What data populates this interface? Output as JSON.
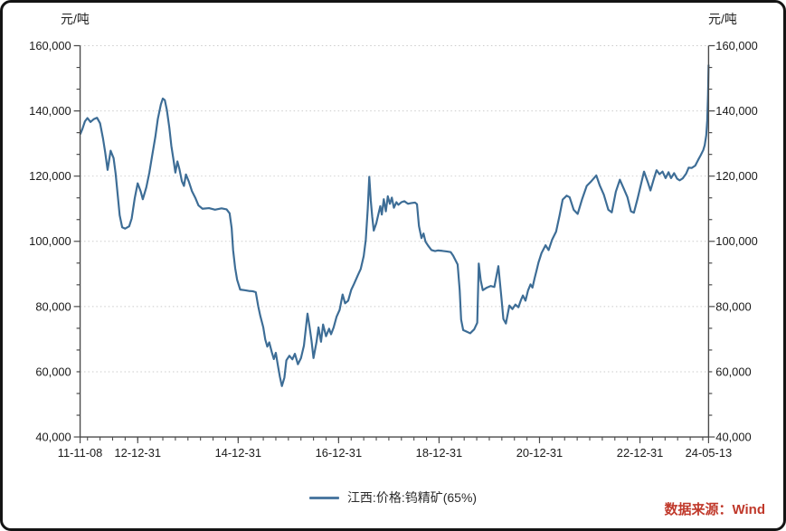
{
  "units": {
    "left": "元/吨",
    "right": "元/吨"
  },
  "source_note": {
    "text": "数据来源：Wind",
    "color": "#c0392b"
  },
  "colors": {
    "line": "#3d6d96",
    "legend_sample": "#4d79a1",
    "grid": "#cbcbcb",
    "axis": "#4a4a4a",
    "tick_text": "#1a1a1a",
    "background": "#ffffff",
    "border": "#141414"
  },
  "chart_data": {
    "type": "line",
    "title": "",
    "ylabel_unit": "元/吨",
    "grid": "horizontal-dotted",
    "legend_position": "bottom-center",
    "xlim": [
      2011.853,
      2024.366
    ],
    "ylim": [
      40000,
      160000
    ],
    "y_ticks": [
      {
        "value": 40000,
        "label": "40,000"
      },
      {
        "value": 60000,
        "label": "60,000"
      },
      {
        "value": 80000,
        "label": "80,000"
      },
      {
        "value": 100000,
        "label": "100,000"
      },
      {
        "value": 120000,
        "label": "120,000"
      },
      {
        "value": 140000,
        "label": "140,000"
      },
      {
        "value": 160000,
        "label": "160,000"
      }
    ],
    "x_ticks": [
      {
        "pos": 2011.853,
        "label": "11-11-08"
      },
      {
        "pos": 2013.0,
        "label": "12-12-31"
      },
      {
        "pos": 2015.0,
        "label": "14-12-31"
      },
      {
        "pos": 2017.0,
        "label": "16-12-31"
      },
      {
        "pos": 2019.0,
        "label": "18-12-31"
      },
      {
        "pos": 2021.0,
        "label": "20-12-31"
      },
      {
        "pos": 2023.0,
        "label": "22-12-31"
      },
      {
        "pos": 2024.366,
        "label": "24-05-13"
      }
    ],
    "series": [
      {
        "name": "江西:价格:钨精矿(65%)",
        "color": "#3d6d96",
        "points": [
          [
            2011.86,
            133000
          ],
          [
            2011.9,
            134500
          ],
          [
            2011.95,
            136800
          ],
          [
            2012.0,
            137800
          ],
          [
            2012.06,
            136600
          ],
          [
            2012.13,
            137500
          ],
          [
            2012.19,
            137900
          ],
          [
            2012.25,
            136200
          ],
          [
            2012.31,
            131500
          ],
          [
            2012.35,
            127500
          ],
          [
            2012.4,
            121900
          ],
          [
            2012.46,
            127800
          ],
          [
            2012.52,
            125500
          ],
          [
            2012.56,
            120700
          ],
          [
            2012.6,
            114500
          ],
          [
            2012.64,
            108000
          ],
          [
            2012.69,
            104300
          ],
          [
            2012.75,
            103900
          ],
          [
            2012.83,
            104600
          ],
          [
            2012.88,
            107000
          ],
          [
            2012.94,
            113200
          ],
          [
            2013.0,
            117800
          ],
          [
            2013.06,
            115300
          ],
          [
            2013.1,
            112900
          ],
          [
            2013.17,
            116500
          ],
          [
            2013.23,
            121000
          ],
          [
            2013.29,
            126500
          ],
          [
            2013.35,
            132000
          ],
          [
            2013.4,
            137500
          ],
          [
            2013.46,
            142000
          ],
          [
            2013.5,
            143800
          ],
          [
            2013.54,
            143300
          ],
          [
            2013.58,
            140300
          ],
          [
            2013.63,
            134800
          ],
          [
            2013.67,
            129300
          ],
          [
            2013.71,
            125200
          ],
          [
            2013.75,
            121100
          ],
          [
            2013.79,
            124500
          ],
          [
            2013.83,
            122200
          ],
          [
            2013.88,
            118400
          ],
          [
            2013.92,
            117000
          ],
          [
            2013.96,
            120500
          ],
          [
            2014.02,
            118200
          ],
          [
            2014.08,
            115400
          ],
          [
            2014.15,
            113200
          ],
          [
            2014.21,
            111000
          ],
          [
            2014.29,
            110000
          ],
          [
            2014.42,
            110200
          ],
          [
            2014.54,
            109700
          ],
          [
            2014.67,
            110100
          ],
          [
            2014.77,
            109800
          ],
          [
            2014.83,
            108600
          ],
          [
            2014.87,
            104000
          ],
          [
            2014.9,
            97300
          ],
          [
            2014.94,
            91800
          ],
          [
            2014.98,
            88200
          ],
          [
            2015.04,
            85200
          ],
          [
            2015.13,
            85000
          ],
          [
            2015.21,
            84800
          ],
          [
            2015.29,
            84700
          ],
          [
            2015.35,
            84400
          ],
          [
            2015.4,
            80000
          ],
          [
            2015.44,
            77200
          ],
          [
            2015.5,
            73600
          ],
          [
            2015.54,
            69900
          ],
          [
            2015.58,
            67700
          ],
          [
            2015.62,
            69000
          ],
          [
            2015.67,
            66000
          ],
          [
            2015.71,
            63900
          ],
          [
            2015.75,
            65800
          ],
          [
            2015.79,
            62000
          ],
          [
            2015.83,
            58500
          ],
          [
            2015.87,
            55600
          ],
          [
            2015.92,
            58200
          ],
          [
            2015.96,
            63500
          ],
          [
            2016.02,
            64900
          ],
          [
            2016.08,
            63800
          ],
          [
            2016.13,
            65500
          ],
          [
            2016.19,
            62300
          ],
          [
            2016.25,
            64200
          ],
          [
            2016.31,
            68000
          ],
          [
            2016.38,
            77800
          ],
          [
            2016.42,
            74000
          ],
          [
            2016.46,
            69500
          ],
          [
            2016.5,
            64200
          ],
          [
            2016.56,
            69200
          ],
          [
            2016.6,
            73600
          ],
          [
            2016.65,
            69200
          ],
          [
            2016.69,
            74500
          ],
          [
            2016.75,
            70900
          ],
          [
            2016.81,
            73200
          ],
          [
            2016.85,
            71500
          ],
          [
            2016.9,
            73500
          ],
          [
            2016.96,
            76900
          ],
          [
            2017.02,
            79000
          ],
          [
            2017.08,
            83700
          ],
          [
            2017.13,
            81000
          ],
          [
            2017.19,
            81800
          ],
          [
            2017.25,
            85100
          ],
          [
            2017.31,
            87000
          ],
          [
            2017.38,
            89500
          ],
          [
            2017.44,
            91500
          ],
          [
            2017.5,
            95500
          ],
          [
            2017.54,
            100500
          ],
          [
            2017.58,
            110000
          ],
          [
            2017.61,
            119800
          ],
          [
            2017.64,
            112500
          ],
          [
            2017.67,
            107500
          ],
          [
            2017.7,
            103300
          ],
          [
            2017.75,
            105500
          ],
          [
            2017.79,
            108200
          ],
          [
            2017.83,
            110800
          ],
          [
            2017.86,
            108200
          ],
          [
            2017.9,
            112900
          ],
          [
            2017.94,
            109200
          ],
          [
            2017.98,
            113800
          ],
          [
            2018.02,
            111500
          ],
          [
            2018.06,
            113400
          ],
          [
            2018.1,
            110300
          ],
          [
            2018.15,
            112000
          ],
          [
            2018.19,
            111200
          ],
          [
            2018.25,
            112000
          ],
          [
            2018.31,
            112300
          ],
          [
            2018.38,
            111500
          ],
          [
            2018.44,
            111700
          ],
          [
            2018.52,
            111900
          ],
          [
            2018.56,
            111400
          ],
          [
            2018.6,
            104700
          ],
          [
            2018.65,
            101000
          ],
          [
            2018.69,
            102400
          ],
          [
            2018.73,
            99900
          ],
          [
            2018.79,
            98500
          ],
          [
            2018.85,
            97300
          ],
          [
            2018.92,
            97000
          ],
          [
            2018.98,
            97200
          ],
          [
            2019.06,
            97100
          ],
          [
            2019.15,
            96900
          ],
          [
            2019.23,
            96700
          ],
          [
            2019.28,
            95600
          ],
          [
            2019.37,
            92900
          ],
          [
            2019.41,
            85000
          ],
          [
            2019.44,
            76000
          ],
          [
            2019.48,
            72800
          ],
          [
            2019.55,
            72300
          ],
          [
            2019.62,
            71800
          ],
          [
            2019.7,
            73000
          ],
          [
            2019.76,
            75000
          ],
          [
            2019.79,
            93200
          ],
          [
            2019.83,
            88000
          ],
          [
            2019.87,
            85000
          ],
          [
            2019.95,
            85800
          ],
          [
            2020.03,
            86300
          ],
          [
            2020.1,
            86000
          ],
          [
            2020.18,
            92400
          ],
          [
            2020.24,
            83000
          ],
          [
            2020.28,
            76200
          ],
          [
            2020.33,
            74800
          ],
          [
            2020.4,
            80300
          ],
          [
            2020.46,
            79200
          ],
          [
            2020.52,
            80600
          ],
          [
            2020.58,
            79800
          ],
          [
            2020.63,
            82000
          ],
          [
            2020.67,
            83400
          ],
          [
            2020.72,
            81800
          ],
          [
            2020.77,
            84900
          ],
          [
            2020.82,
            86800
          ],
          [
            2020.86,
            85800
          ],
          [
            2020.9,
            88600
          ],
          [
            2020.94,
            91000
          ],
          [
            2020.98,
            93500
          ],
          [
            2021.04,
            96400
          ],
          [
            2021.12,
            98800
          ],
          [
            2021.18,
            97300
          ],
          [
            2021.25,
            100500
          ],
          [
            2021.33,
            103000
          ],
          [
            2021.4,
            108000
          ],
          [
            2021.46,
            112800
          ],
          [
            2021.54,
            114000
          ],
          [
            2021.6,
            113500
          ],
          [
            2021.68,
            109700
          ],
          [
            2021.76,
            108400
          ],
          [
            2021.85,
            113000
          ],
          [
            2021.94,
            117000
          ],
          [
            2022.03,
            118400
          ],
          [
            2022.13,
            120200
          ],
          [
            2022.2,
            117100
          ],
          [
            2022.28,
            114300
          ],
          [
            2022.37,
            109700
          ],
          [
            2022.44,
            108900
          ],
          [
            2022.52,
            115200
          ],
          [
            2022.6,
            118900
          ],
          [
            2022.68,
            116100
          ],
          [
            2022.75,
            113600
          ],
          [
            2022.82,
            109200
          ],
          [
            2022.88,
            108800
          ],
          [
            2022.95,
            113000
          ],
          [
            2023.02,
            117500
          ],
          [
            2023.08,
            121400
          ],
          [
            2023.15,
            118400
          ],
          [
            2023.21,
            115600
          ],
          [
            2023.27,
            118800
          ],
          [
            2023.33,
            121800
          ],
          [
            2023.39,
            120600
          ],
          [
            2023.45,
            121400
          ],
          [
            2023.51,
            119400
          ],
          [
            2023.57,
            121200
          ],
          [
            2023.62,
            119400
          ],
          [
            2023.68,
            120900
          ],
          [
            2023.74,
            119200
          ],
          [
            2023.79,
            118700
          ],
          [
            2023.85,
            119300
          ],
          [
            2023.92,
            120800
          ],
          [
            2023.97,
            122600
          ],
          [
            2024.03,
            122500
          ],
          [
            2024.1,
            123200
          ],
          [
            2024.16,
            125000
          ],
          [
            2024.21,
            126400
          ],
          [
            2024.26,
            128000
          ],
          [
            2024.29,
            129500
          ],
          [
            2024.32,
            132500
          ],
          [
            2024.34,
            137000
          ],
          [
            2024.355,
            145000
          ],
          [
            2024.366,
            154000
          ]
        ]
      }
    ],
    "legend": {
      "entries": [
        {
          "label": "江西:价格:钨精矿(65%)"
        }
      ]
    }
  }
}
